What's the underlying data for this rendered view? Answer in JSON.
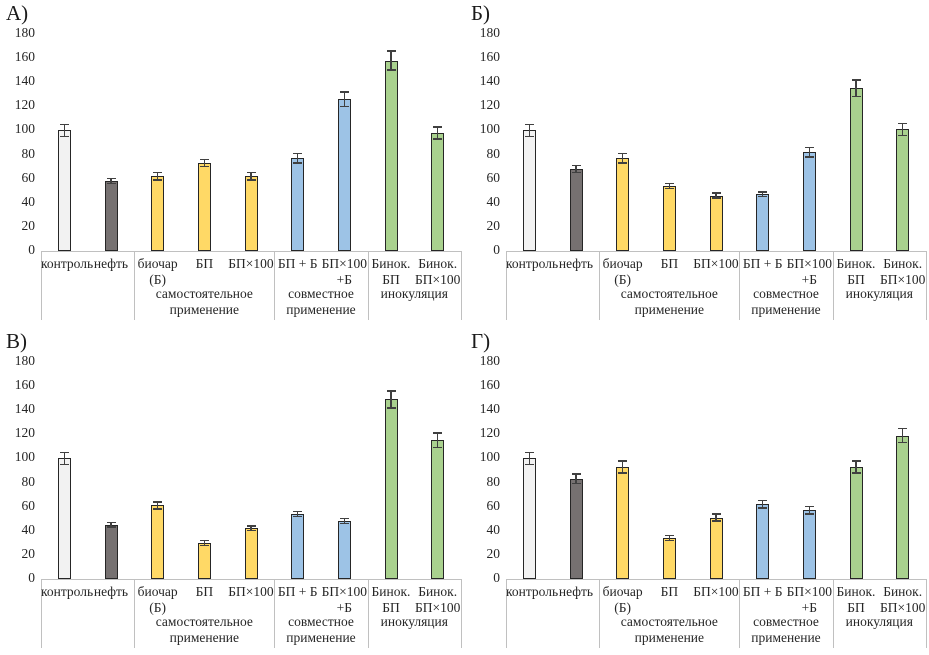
{
  "figure": {
    "background": "#ffffff",
    "text_color": "#262626"
  },
  "chart_data": {
    "type": "bar",
    "ylim": [
      0,
      180
    ],
    "ytick_step": 20,
    "yticks": [
      0,
      20,
      40,
      60,
      80,
      100,
      120,
      140,
      160,
      180
    ],
    "grid": "off",
    "legend": "none",
    "categories": [
      "контроль",
      "нефть",
      "биочар (Б)",
      "БП",
      "БП×100",
      "БП + Б",
      "БП×100 +Б",
      "Бинок. БП",
      "Бинок. БП×100"
    ],
    "category_lines": [
      [
        "контроль"
      ],
      [
        "нефть"
      ],
      [
        "биочар",
        "(Б)"
      ],
      [
        "БП"
      ],
      [
        "БП×100"
      ],
      [
        "БП + Б"
      ],
      [
        "БП×100",
        "+Б"
      ],
      [
        "Бинок.",
        "БП"
      ],
      [
        "Бинок.",
        "БП×100"
      ]
    ],
    "groups": [
      {
        "label": "",
        "start": 0,
        "span": 2
      },
      {
        "label": "самостоятельное применение",
        "start": 2,
        "span": 3
      },
      {
        "label": "совместное применение",
        "start": 5,
        "span": 2
      },
      {
        "label": "инокуляция",
        "start": 7,
        "span": 2
      }
    ],
    "bar_fills": [
      "#f2f2f2",
      "#767171",
      "#ffd966",
      "#ffd966",
      "#ffd966",
      "#9dc3e6",
      "#9dc3e6",
      "#a9d18e",
      "#a9d18e"
    ],
    "bar_border_color": "#262626",
    "error_bar_color": "#404040",
    "axis_line_color": "#c0c0c0",
    "panels": [
      {
        "label": "А)",
        "values": [
          100,
          58,
          62,
          73,
          62,
          77,
          126,
          158,
          98
        ],
        "errors": [
          5,
          2,
          3,
          3,
          3,
          4,
          6,
          8,
          5
        ]
      },
      {
        "label": "Б)",
        "values": [
          100,
          68,
          77,
          54,
          46,
          47,
          82,
          135,
          101
        ],
        "errors": [
          5,
          3,
          4,
          2,
          2,
          2,
          4,
          7,
          5
        ]
      },
      {
        "label": "В)",
        "values": [
          100,
          45,
          61,
          30,
          42,
          54,
          48,
          149,
          115
        ],
        "errors": [
          5,
          2,
          3,
          2,
          2,
          2,
          2,
          7,
          6
        ]
      },
      {
        "label": "Г)",
        "values": [
          100,
          83,
          93,
          34,
          51,
          62,
          57,
          93,
          119
        ],
        "errors": [
          5,
          4,
          5,
          2,
          3,
          3,
          3,
          5,
          6
        ]
      }
    ]
  }
}
